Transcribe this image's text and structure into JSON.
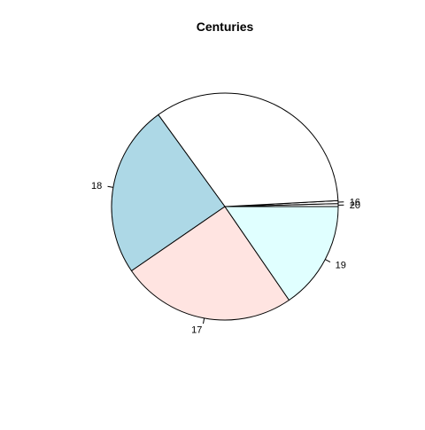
{
  "chart_data": {
    "type": "pie",
    "title": "Centuries",
    "direction": "counterclockwise",
    "start_angle_deg": 0,
    "slices": [
      {
        "label": "20",
        "value": 1,
        "color": "#ffffff"
      },
      {
        "label": "16",
        "value": 1,
        "color": "#ffffff"
      },
      {
        "label": "",
        "value": 0,
        "color": "#ffffff"
      },
      {
        "label": "",
        "value": 82,
        "color": "#ffffff"
      },
      {
        "label": "18",
        "value": 59,
        "color": "#add8e6"
      },
      {
        "label": "17",
        "value": 60,
        "color": "#ffe4e1"
      },
      {
        "label": "19",
        "value": 37,
        "color": "#e0ffff"
      }
    ],
    "label_order_note": "",
    "stroke_color": "#000000"
  }
}
